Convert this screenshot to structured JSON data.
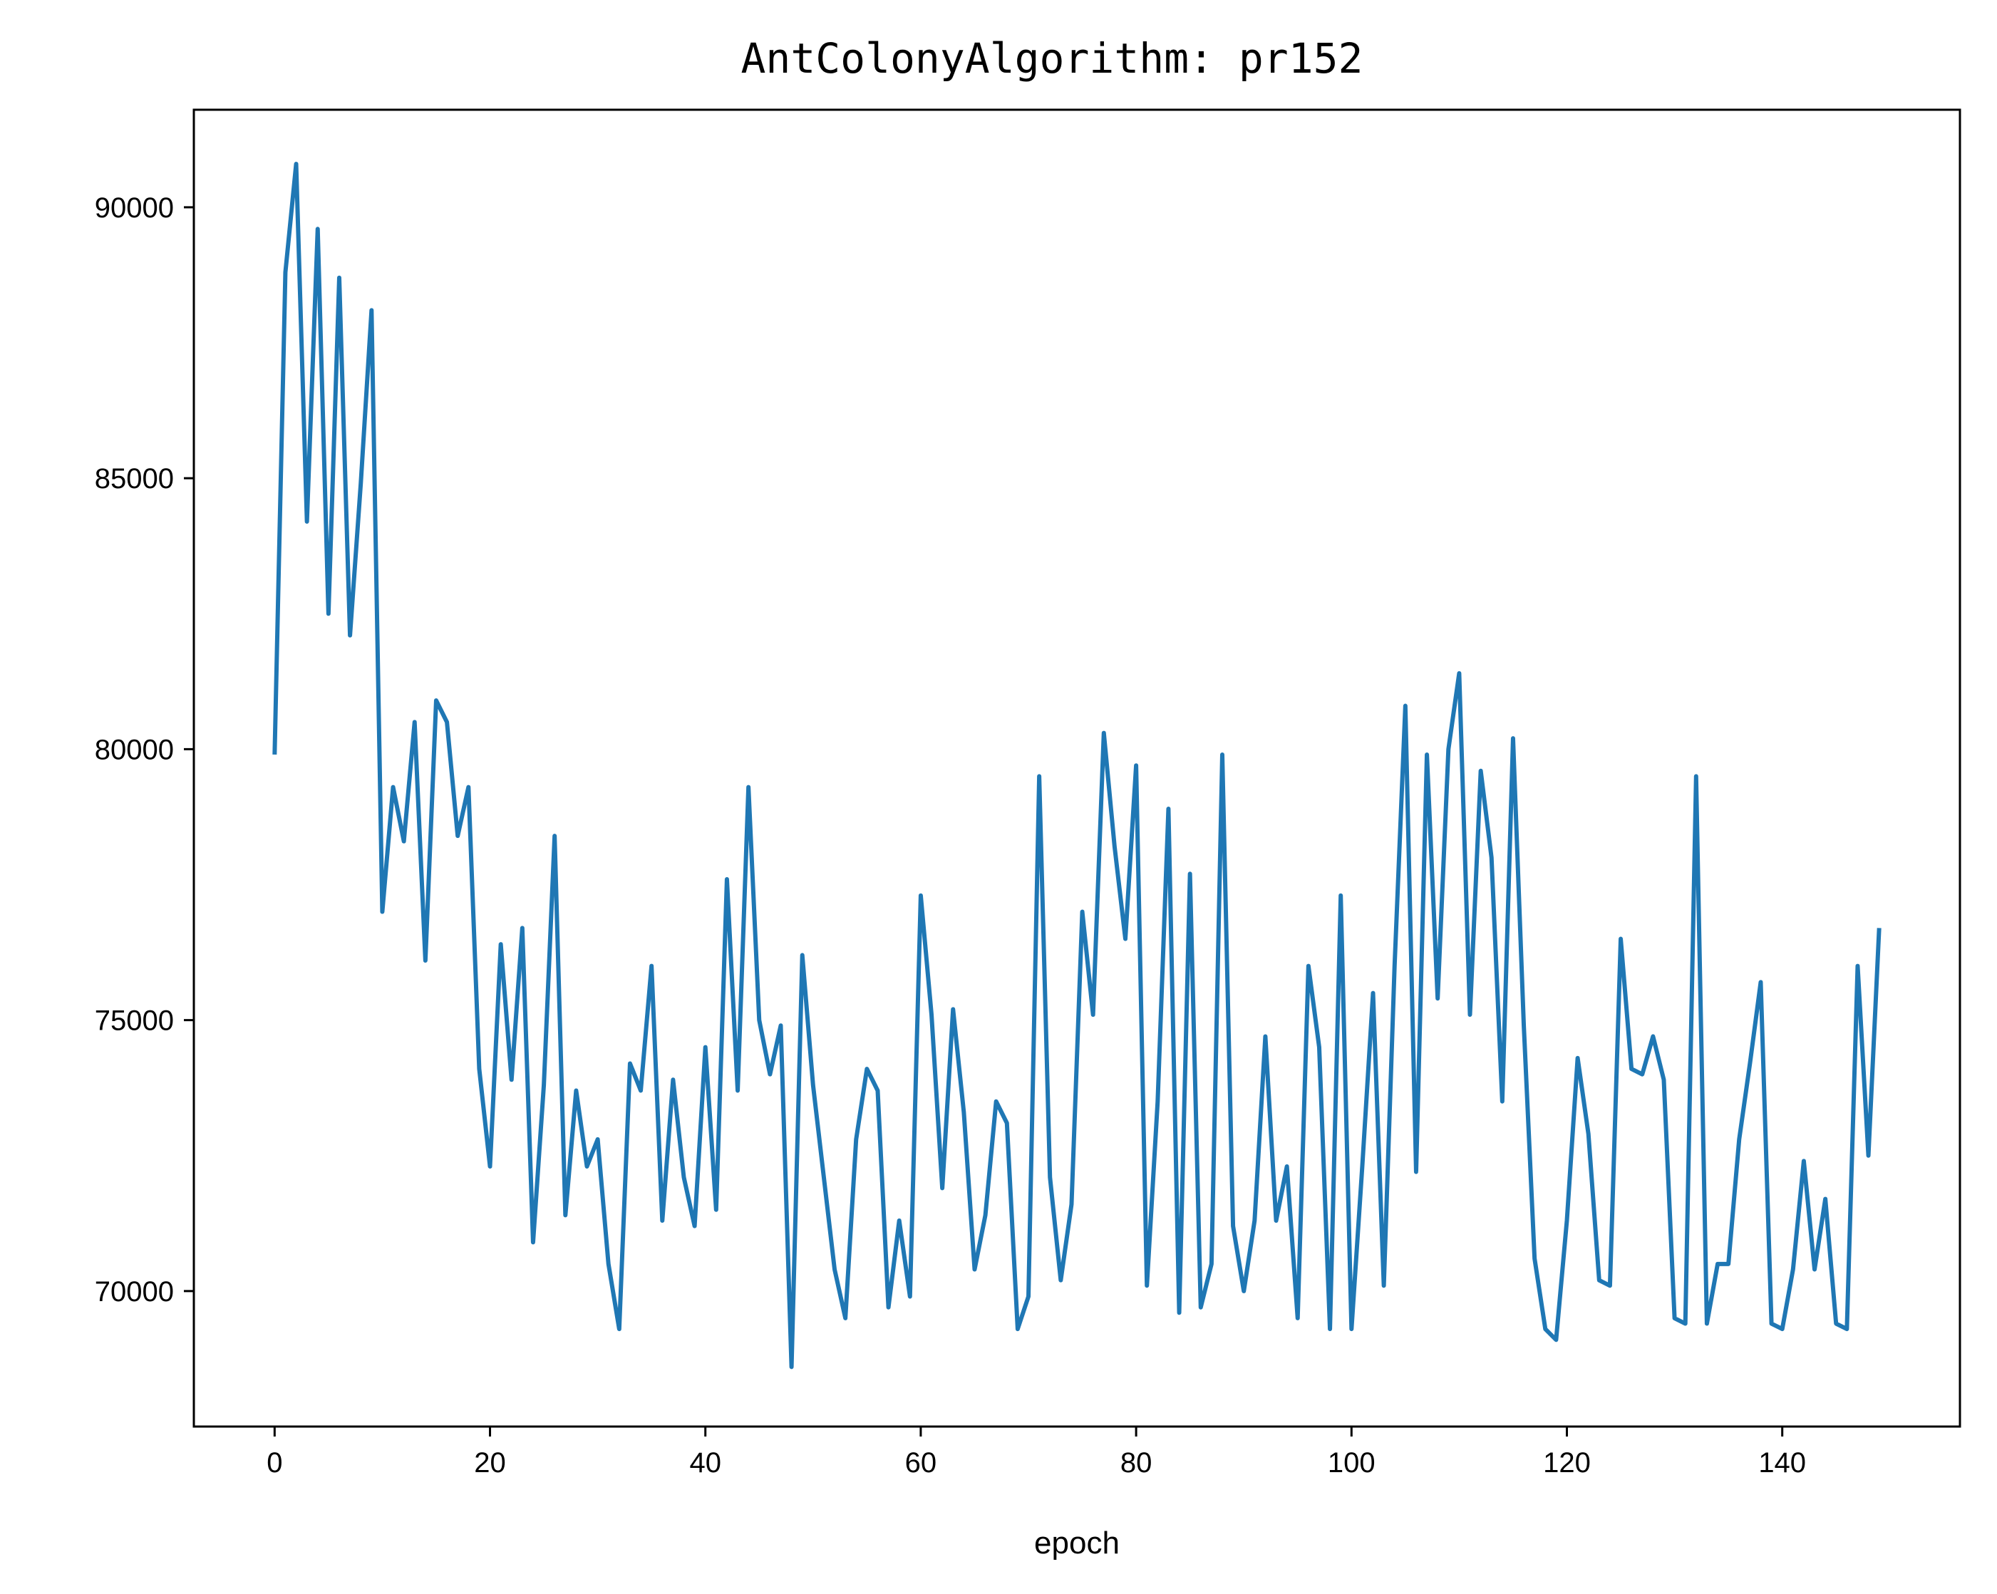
{
  "chart_data": {
    "type": "line",
    "title": "AntColonyAlgorithm: pr152",
    "xlabel": "epoch",
    "ylabel": "",
    "xlim": [
      -7.5,
      156.5
    ],
    "ylim": [
      67500,
      91800
    ],
    "xticks": [
      0,
      20,
      40,
      60,
      80,
      100,
      120,
      140
    ],
    "xtick_labels": [
      "0",
      "20",
      "40",
      "60",
      "80",
      "100",
      "120",
      "140"
    ],
    "yticks": [
      70000,
      75000,
      80000,
      85000,
      90000
    ],
    "ytick_labels": [
      "70000",
      "75000",
      "80000",
      "85000",
      "90000"
    ],
    "grid": false,
    "legend": "none",
    "series": [
      {
        "color": "#1f77b4",
        "x": [
          0,
          1,
          2,
          3,
          4,
          5,
          6,
          7,
          8,
          9,
          10,
          11,
          12,
          13,
          14,
          15,
          16,
          17,
          18,
          19,
          20,
          21,
          22,
          23,
          24,
          25,
          26,
          27,
          28,
          29,
          30,
          31,
          32,
          33,
          34,
          35,
          36,
          37,
          38,
          39,
          40,
          41,
          42,
          43,
          44,
          45,
          46,
          47,
          48,
          49,
          50,
          51,
          52,
          53,
          54,
          55,
          56,
          57,
          58,
          59,
          60,
          61,
          62,
          63,
          64,
          65,
          66,
          67,
          68,
          69,
          70,
          71,
          72,
          73,
          74,
          75,
          76,
          77,
          78,
          79,
          80,
          81,
          82,
          83,
          84,
          85,
          86,
          87,
          88,
          89,
          90,
          91,
          92,
          93,
          94,
          95,
          96,
          97,
          98,
          99,
          100,
          101,
          102,
          103,
          104,
          105,
          106,
          107,
          108,
          109,
          110,
          111,
          112,
          113,
          114,
          115,
          116,
          117,
          118,
          119,
          120,
          121,
          122,
          123,
          124,
          125,
          126,
          127,
          128,
          129,
          130,
          131,
          132,
          133,
          134,
          135,
          136,
          137,
          138,
          139,
          140,
          141,
          142,
          143,
          144,
          145,
          146,
          147,
          148,
          149
        ],
        "values": [
          79900,
          88800,
          90800,
          84200,
          89600,
          82500,
          88700,
          82100,
          84900,
          88100,
          77000,
          79300,
          78300,
          80500,
          76100,
          80900,
          80500,
          78400,
          79300,
          74100,
          72300,
          76400,
          73900,
          76700,
          70900,
          73800,
          78400,
          71400,
          73700,
          72300,
          72800,
          70500,
          69300,
          74200,
          73700,
          76000,
          71300,
          73900,
          72100,
          71200,
          74500,
          71500,
          77600,
          73700,
          79300,
          75000,
          74000,
          74900,
          68600,
          76200,
          73800,
          72100,
          70400,
          69500,
          72800,
          74100,
          73700,
          69700,
          71300,
          69900,
          77300,
          75100,
          71900,
          75200,
          73300,
          70400,
          71400,
          73500,
          73100,
          69300,
          69900,
          79500,
          72100,
          70200,
          71600,
          77000,
          75100,
          80300,
          78200,
          76500,
          79700,
          70100,
          73500,
          78900,
          69600,
          77700,
          69700,
          70500,
          79900,
          71200,
          70000,
          71300,
          74700,
          71300,
          72300,
          69500,
          76000,
          74500,
          69300,
          77300,
          69300,
          72300,
          75500,
          70100,
          76000,
          80800,
          72200,
          79900,
          75400,
          80000,
          81400,
          75100,
          79600,
          78000,
          73500,
          80200,
          74900,
          70600,
          69300,
          69100,
          71300,
          74300,
          72900,
          70200,
          70100,
          76500,
          74100,
          74000,
          74700,
          73900,
          69500,
          69400,
          79500,
          69400,
          70500,
          70500,
          72800,
          74200,
          75700,
          69400,
          69300,
          70400,
          72400,
          70400,
          71700,
          69400,
          69300,
          76000,
          72500,
          76700
        ]
      }
    ]
  }
}
